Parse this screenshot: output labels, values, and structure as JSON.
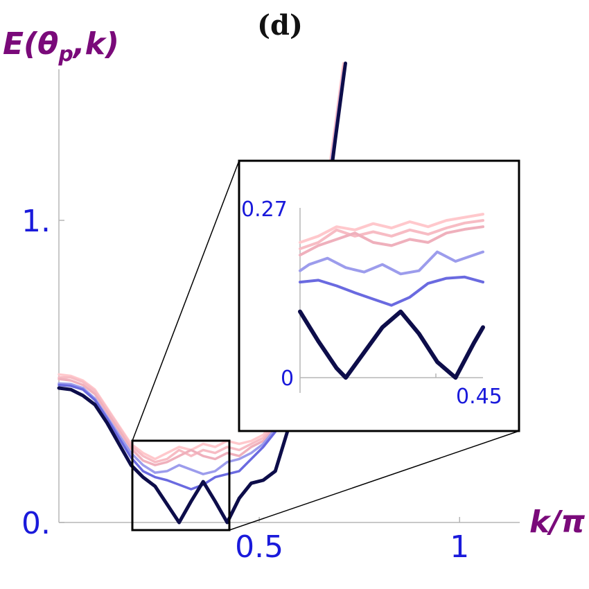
{
  "chart_data": {
    "type": "line",
    "title": "(d)",
    "ylabel": "E(θp,k)",
    "ylabel_main": "E(θ",
    "ylabel_sub": "p",
    "ylabel_tail": ",k)",
    "xlabel": "k/π",
    "xlim": [
      0,
      1.15
    ],
    "ylim": [
      0,
      1.5
    ],
    "xticks": [
      {
        "value": 0.5,
        "label": "0.5"
      },
      {
        "value": 1,
        "label": "1"
      }
    ],
    "yticks": [
      {
        "value": 0,
        "label": "0."
      },
      {
        "value": 1,
        "label": "1."
      }
    ],
    "grid": false,
    "legend": "none",
    "series": [
      {
        "color": "#ffc8cc",
        "points": [
          [
            0,
            0.49
          ],
          [
            0.03,
            0.485
          ],
          [
            0.06,
            0.47
          ],
          [
            0.09,
            0.44
          ],
          [
            0.12,
            0.38
          ],
          [
            0.15,
            0.32
          ],
          [
            0.18,
            0.26
          ],
          [
            0.21,
            0.23
          ],
          [
            0.24,
            0.21
          ],
          [
            0.27,
            0.23
          ],
          [
            0.3,
            0.25
          ],
          [
            0.33,
            0.24
          ],
          [
            0.36,
            0.26
          ],
          [
            0.39,
            0.25
          ],
          [
            0.42,
            0.27
          ],
          [
            0.45,
            0.26
          ],
          [
            0.48,
            0.27
          ],
          [
            0.51,
            0.29
          ],
          [
            0.54,
            0.34
          ],
          [
            0.57,
            0.44
          ],
          [
            0.6,
            0.58
          ],
          [
            0.63,
            0.78
          ],
          [
            0.66,
            1.03
          ],
          [
            0.69,
            1.32
          ],
          [
            0.71,
            1.52
          ]
        ]
      },
      {
        "color": "#f7bcc4",
        "points": [
          [
            0,
            0.48
          ],
          [
            0.03,
            0.48
          ],
          [
            0.06,
            0.465
          ],
          [
            0.09,
            0.435
          ],
          [
            0.12,
            0.375
          ],
          [
            0.15,
            0.315
          ],
          [
            0.18,
            0.255
          ],
          [
            0.21,
            0.22
          ],
          [
            0.24,
            0.2
          ],
          [
            0.27,
            0.21
          ],
          [
            0.3,
            0.24
          ],
          [
            0.33,
            0.22
          ],
          [
            0.36,
            0.24
          ],
          [
            0.39,
            0.23
          ],
          [
            0.42,
            0.25
          ],
          [
            0.45,
            0.24
          ],
          [
            0.48,
            0.26
          ],
          [
            0.51,
            0.28
          ],
          [
            0.54,
            0.33
          ],
          [
            0.57,
            0.43
          ],
          [
            0.6,
            0.57
          ],
          [
            0.63,
            0.77
          ],
          [
            0.66,
            1.02
          ],
          [
            0.69,
            1.31
          ],
          [
            0.71,
            1.51
          ]
        ]
      },
      {
        "color": "#efb0bc",
        "points": [
          [
            0,
            0.475
          ],
          [
            0.03,
            0.47
          ],
          [
            0.06,
            0.455
          ],
          [
            0.09,
            0.425
          ],
          [
            0.12,
            0.365
          ],
          [
            0.15,
            0.305
          ],
          [
            0.18,
            0.245
          ],
          [
            0.21,
            0.205
          ],
          [
            0.24,
            0.19
          ],
          [
            0.27,
            0.2
          ],
          [
            0.3,
            0.22
          ],
          [
            0.33,
            0.24
          ],
          [
            0.36,
            0.22
          ],
          [
            0.39,
            0.21
          ],
          [
            0.42,
            0.23
          ],
          [
            0.45,
            0.22
          ],
          [
            0.48,
            0.25
          ],
          [
            0.51,
            0.27
          ],
          [
            0.54,
            0.32
          ],
          [
            0.57,
            0.42
          ],
          [
            0.6,
            0.56
          ],
          [
            0.63,
            0.76
          ],
          [
            0.66,
            1.01
          ],
          [
            0.69,
            1.3
          ],
          [
            0.71,
            1.5
          ]
        ]
      },
      {
        "color": "#9c9cec",
        "points": [
          [
            0,
            0.46
          ],
          [
            0.03,
            0.458
          ],
          [
            0.06,
            0.445
          ],
          [
            0.09,
            0.41
          ],
          [
            0.12,
            0.35
          ],
          [
            0.15,
            0.29
          ],
          [
            0.18,
            0.23
          ],
          [
            0.21,
            0.19
          ],
          [
            0.24,
            0.165
          ],
          [
            0.27,
            0.17
          ],
          [
            0.3,
            0.19
          ],
          [
            0.33,
            0.175
          ],
          [
            0.36,
            0.16
          ],
          [
            0.39,
            0.17
          ],
          [
            0.42,
            0.2
          ],
          [
            0.45,
            0.21
          ],
          [
            0.48,
            0.23
          ],
          [
            0.51,
            0.26
          ],
          [
            0.54,
            0.31
          ],
          [
            0.57,
            0.41
          ],
          [
            0.6,
            0.55
          ],
          [
            0.63,
            0.75
          ],
          [
            0.66,
            1.0
          ],
          [
            0.69,
            1.29
          ],
          [
            0.71,
            1.49
          ]
        ]
      },
      {
        "color": "#6a6ae0",
        "points": [
          [
            0,
            0.455
          ],
          [
            0.03,
            0.452
          ],
          [
            0.06,
            0.44
          ],
          [
            0.09,
            0.405
          ],
          [
            0.12,
            0.345
          ],
          [
            0.15,
            0.28
          ],
          [
            0.18,
            0.215
          ],
          [
            0.21,
            0.17
          ],
          [
            0.24,
            0.15
          ],
          [
            0.27,
            0.14
          ],
          [
            0.3,
            0.125
          ],
          [
            0.33,
            0.11
          ],
          [
            0.36,
            0.125
          ],
          [
            0.39,
            0.15
          ],
          [
            0.42,
            0.16
          ],
          [
            0.45,
            0.17
          ],
          [
            0.48,
            0.21
          ],
          [
            0.51,
            0.25
          ],
          [
            0.54,
            0.3
          ],
          [
            0.57,
            0.4
          ],
          [
            0.6,
            0.54
          ],
          [
            0.63,
            0.74
          ],
          [
            0.66,
            0.99
          ],
          [
            0.69,
            1.28
          ],
          [
            0.71,
            1.48
          ]
        ]
      },
      {
        "color": "#0d0d4a",
        "points": [
          [
            0,
            0.445
          ],
          [
            0.03,
            0.44
          ],
          [
            0.06,
            0.42
          ],
          [
            0.09,
            0.39
          ],
          [
            0.12,
            0.33
          ],
          [
            0.15,
            0.26
          ],
          [
            0.18,
            0.19
          ],
          [
            0.21,
            0.15
          ],
          [
            0.24,
            0.12
          ],
          [
            0.27,
            0.06
          ],
          [
            0.3,
            0.0
          ],
          [
            0.33,
            0.07
          ],
          [
            0.36,
            0.135
          ],
          [
            0.39,
            0.07
          ],
          [
            0.42,
            0.0
          ],
          [
            0.45,
            0.08
          ],
          [
            0.48,
            0.13
          ],
          [
            0.51,
            0.14
          ],
          [
            0.54,
            0.17
          ],
          [
            0.57,
            0.3
          ],
          [
            0.6,
            0.46
          ],
          [
            0.63,
            0.68
          ],
          [
            0.66,
            0.96
          ],
          [
            0.69,
            1.27
          ],
          [
            0.715,
            1.52
          ]
        ]
      }
    ],
    "inset": {
      "xlim": [
        0.25,
        0.45
      ],
      "ylim": [
        0,
        0.27
      ],
      "corner_labels": {
        "y_top": "0.27",
        "y_bottom": "0",
        "x_right": "0.45"
      },
      "series": [
        {
          "color": "#ffc8cc",
          "points": [
            [
              0.25,
              0.215
            ],
            [
              0.27,
              0.225
            ],
            [
              0.29,
              0.24
            ],
            [
              0.31,
              0.235
            ],
            [
              0.33,
              0.245
            ],
            [
              0.35,
              0.238
            ],
            [
              0.37,
              0.248
            ],
            [
              0.39,
              0.24
            ],
            [
              0.41,
              0.25
            ],
            [
              0.43,
              0.255
            ],
            [
              0.45,
              0.26
            ]
          ]
        },
        {
          "color": "#f7bcc4",
          "points": [
            [
              0.25,
              0.205
            ],
            [
              0.27,
              0.215
            ],
            [
              0.29,
              0.235
            ],
            [
              0.31,
              0.225
            ],
            [
              0.33,
              0.232
            ],
            [
              0.35,
              0.225
            ],
            [
              0.37,
              0.235
            ],
            [
              0.39,
              0.228
            ],
            [
              0.41,
              0.238
            ],
            [
              0.43,
              0.246
            ],
            [
              0.45,
              0.25
            ]
          ]
        },
        {
          "color": "#efb0bc",
          "points": [
            [
              0.25,
              0.195
            ],
            [
              0.27,
              0.21
            ],
            [
              0.29,
              0.22
            ],
            [
              0.31,
              0.23
            ],
            [
              0.33,
              0.215
            ],
            [
              0.35,
              0.21
            ],
            [
              0.37,
              0.22
            ],
            [
              0.39,
              0.215
            ],
            [
              0.41,
              0.23
            ],
            [
              0.43,
              0.236
            ],
            [
              0.45,
              0.24
            ]
          ]
        },
        {
          "color": "#9c9cec",
          "points": [
            [
              0.25,
              0.17
            ],
            [
              0.26,
              0.18
            ],
            [
              0.28,
              0.19
            ],
            [
              0.3,
              0.175
            ],
            [
              0.32,
              0.168
            ],
            [
              0.34,
              0.18
            ],
            [
              0.36,
              0.165
            ],
            [
              0.38,
              0.17
            ],
            [
              0.4,
              0.2
            ],
            [
              0.42,
              0.185
            ],
            [
              0.45,
              0.2
            ]
          ]
        },
        {
          "color": "#6a6ae0",
          "points": [
            [
              0.25,
              0.152
            ],
            [
              0.27,
              0.155
            ],
            [
              0.29,
              0.146
            ],
            [
              0.31,
              0.135
            ],
            [
              0.33,
              0.125
            ],
            [
              0.35,
              0.115
            ],
            [
              0.37,
              0.128
            ],
            [
              0.39,
              0.15
            ],
            [
              0.41,
              0.158
            ],
            [
              0.43,
              0.16
            ],
            [
              0.45,
              0.152
            ]
          ]
        },
        {
          "color": "#0d0d4a",
          "points": [
            [
              0.25,
              0.105
            ],
            [
              0.27,
              0.058
            ],
            [
              0.29,
              0.015
            ],
            [
              0.3,
              0.0
            ],
            [
              0.32,
              0.04
            ],
            [
              0.34,
              0.08
            ],
            [
              0.36,
              0.105
            ],
            [
              0.38,
              0.07
            ],
            [
              0.4,
              0.025
            ],
            [
              0.42,
              0.0
            ],
            [
              0.44,
              0.055
            ],
            [
              0.45,
              0.08
            ]
          ]
        }
      ]
    }
  }
}
